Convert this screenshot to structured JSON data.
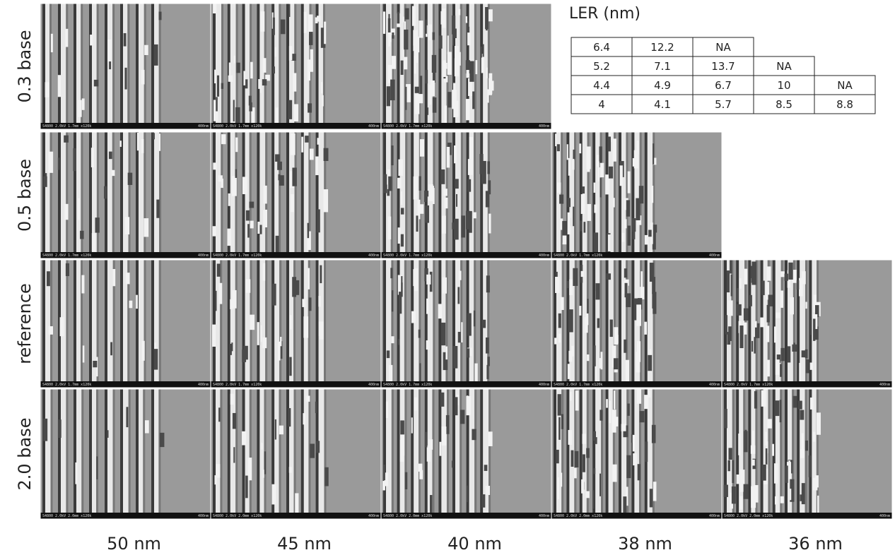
{
  "row_labels": [
    "0.3 base",
    "0.5 base",
    "reference",
    "2.0 base"
  ],
  "column_labels": [
    "50 nm",
    "45 nm",
    "40 nm",
    "38 nm",
    "36 nm"
  ],
  "ler_table": {
    "title": "LER (nm)",
    "rows": [
      [
        6.4,
        12.2,
        "NA"
      ],
      [
        5.2,
        7.1,
        13.7,
        "NA"
      ],
      [
        4.4,
        4.9,
        6.7,
        10,
        "NA"
      ],
      [
        4,
        4.1,
        5.7,
        8.5,
        8.8
      ]
    ]
  },
  "sem_images": [
    {
      "tiles": [
        {
          "info": "S4800 2.0kV 1.7mm x120k",
          "scale": "400nm"
        },
        {
          "info": "S4800 2.0kV 1.7mm x120k",
          "scale": "400nm"
        },
        {
          "info": "S4800 2.0kV 1.7mm x120k",
          "scale": "400nm"
        }
      ]
    },
    {
      "tiles": [
        {
          "info": "S4800 2.0kV 1.7mm x120k",
          "scale": "400nm"
        },
        {
          "info": "S4800 2.0kV 1.7mm x120k",
          "scale": "400nm"
        },
        {
          "info": "S4800 2.0kV 1.7mm x120k",
          "scale": "400nm"
        },
        {
          "info": "S4800 2.0kV 1.7mm x120k",
          "scale": "400nm"
        }
      ]
    },
    {
      "tiles": [
        {
          "info": "S4800 2.0kV 1.7mm x120k",
          "scale": "400nm"
        },
        {
          "info": "S4800 2.0kV 1.7mm x120k",
          "scale": "400nm"
        },
        {
          "info": "S4800 2.0kV 1.7mm x120k",
          "scale": "400nm"
        },
        {
          "info": "S4800 2.0kV 1.7mm x120k",
          "scale": "400nm"
        },
        {
          "info": "S4800 2.0kV 1.7mm x120k",
          "scale": "400nm"
        }
      ]
    },
    {
      "tiles": [
        {
          "info": "S4800 2.0kV 2.0mm x120k",
          "scale": "400nm"
        },
        {
          "info": "S4800 2.0kV 2.0mm x120k",
          "scale": "400nm"
        },
        {
          "info": "S4800 2.0kV 2.0mm x120k",
          "scale": "400nm"
        },
        {
          "info": "S4800 2.0kV 2.0mm x120k",
          "scale": "400nm"
        },
        {
          "info": "S4800 2.0kV 2.0mm x120k",
          "scale": "400nm"
        }
      ]
    }
  ]
}
